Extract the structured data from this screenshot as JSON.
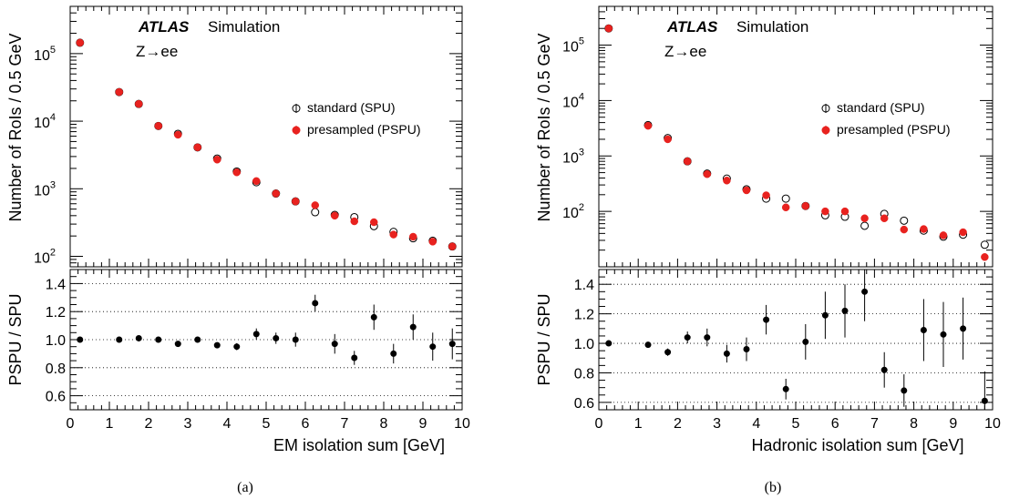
{
  "chart_data": [
    {
      "type": "scatter",
      "caption": "(a)",
      "experiment": "ATLAS",
      "experiment_tag": "Simulation",
      "process": "Z→ee",
      "xlabel": "EM isolation sum [GeV]",
      "ylabel_top": "Number of RoIs / 0.5 GeV",
      "ylabel_bottom": "PSPU / SPU",
      "xlim": [
        0,
        10
      ],
      "ylim_top": [
        70,
        500000
      ],
      "yscale_top": "log",
      "ylim_bottom": [
        0.5,
        1.5
      ],
      "x_ticks": [
        "0",
        "1",
        "2",
        "3",
        "4",
        "5",
        "6",
        "7",
        "8",
        "9",
        "10"
      ],
      "y_ticks_top": [
        {
          "mantissa": "10",
          "exp": "2",
          "value": 100
        },
        {
          "mantissa": "10",
          "exp": "3",
          "value": 1000
        },
        {
          "mantissa": "10",
          "exp": "4",
          "value": 10000
        },
        {
          "mantissa": "10",
          "exp": "5",
          "value": 100000
        }
      ],
      "y_ticks_bottom": [
        "0.6",
        "0.8",
        "1.0",
        "1.2",
        "1.4"
      ],
      "legend": [
        {
          "label": "standard (SPU)",
          "marker": "open-circle",
          "color": "#000000"
        },
        {
          "label": "presampled (PSPU)",
          "marker": "filled-circle",
          "color": "#e8221f"
        }
      ],
      "x": [
        0.25,
        1.25,
        1.75,
        2.25,
        2.75,
        3.25,
        3.75,
        4.25,
        4.75,
        5.25,
        5.75,
        6.25,
        6.75,
        7.25,
        7.75,
        8.25,
        8.75,
        9.25,
        9.75
      ],
      "series": [
        {
          "name": "standard (SPU)",
          "values": [
            145000,
            27000,
            18000,
            8500,
            6500,
            4100,
            2800,
            1800,
            1250,
            850,
            650,
            450,
            410,
            380,
            280,
            230,
            185,
            170,
            140
          ]
        },
        {
          "name": "presampled (PSPU)",
          "values": [
            145000,
            27000,
            18000,
            8500,
            6300,
            4100,
            2700,
            1750,
            1300,
            850,
            650,
            570,
            400,
            330,
            320,
            210,
            195,
            165,
            140
          ]
        }
      ],
      "ratio": {
        "values": [
          1.0,
          1.0,
          1.01,
          1.0,
          0.97,
          1.0,
          0.96,
          0.95,
          1.04,
          1.01,
          1.0,
          1.26,
          0.97,
          0.87,
          1.16,
          0.9,
          1.09,
          0.95,
          0.97
        ],
        "errors": [
          0.005,
          0.01,
          0.012,
          0.015,
          0.015,
          0.02,
          0.02,
          0.025,
          0.04,
          0.04,
          0.05,
          0.06,
          0.07,
          0.05,
          0.09,
          0.07,
          0.09,
          0.1,
          0.11
        ]
      }
    },
    {
      "type": "scatter",
      "caption": "(b)",
      "experiment": "ATLAS",
      "experiment_tag": "Simulation",
      "process": "Z→ee",
      "xlabel": "Hadronic isolation sum [GeV]",
      "ylabel_top": "Number of RoIs  / 0.5 GeV",
      "ylabel_bottom": "PSPU / SPU",
      "xlim": [
        0,
        10
      ],
      "ylim_top": [
        10,
        500000
      ],
      "yscale_top": "log",
      "ylim_bottom": [
        0.55,
        1.5
      ],
      "x_ticks": [
        "0",
        "1",
        "2",
        "3",
        "4",
        "5",
        "6",
        "7",
        "8",
        "9",
        "10"
      ],
      "y_ticks_top": [
        {
          "mantissa": "10",
          "exp": "2",
          "value": 100
        },
        {
          "mantissa": "10",
          "exp": "3",
          "value": 1000
        },
        {
          "mantissa": "10",
          "exp": "4",
          "value": 10000
        },
        {
          "mantissa": "10",
          "exp": "5",
          "value": 100000
        }
      ],
      "y_ticks_bottom": [
        "0.6",
        "0.8",
        "1.0",
        "1.2",
        "1.4"
      ],
      "legend": [
        {
          "label": "standard (SPU)",
          "marker": "open-circle",
          "color": "#000000"
        },
        {
          "label": "presampled (PSPU)",
          "marker": "filled-circle",
          "color": "#e8221f"
        }
      ],
      "x": [
        0.25,
        1.25,
        1.75,
        2.25,
        2.75,
        3.25,
        3.75,
        4.25,
        4.75,
        5.25,
        5.75,
        6.25,
        6.75,
        7.25,
        7.75,
        8.25,
        8.75,
        9.25,
        9.8
      ],
      "series": [
        {
          "name": "standard (SPU)",
          "values": [
            200000,
            3600,
            2100,
            800,
            480,
            390,
            250,
            170,
            170,
            125,
            85,
            80,
            55,
            90,
            68,
            45,
            35,
            38,
            25
          ]
        },
        {
          "name": "presampled (PSPU)",
          "values": [
            200000,
            3500,
            2000,
            800,
            470,
            360,
            240,
            195,
            118,
            125,
            100,
            100,
            75,
            75,
            47,
            48,
            37,
            42,
            15
          ]
        }
      ],
      "ratio": {
        "values": [
          1.0,
          0.99,
          0.94,
          1.04,
          1.04,
          0.93,
          0.96,
          1.16,
          0.69,
          1.01,
          1.19,
          1.22,
          1.35,
          0.82,
          0.68,
          1.09,
          1.06,
          1.1,
          0.61
        ],
        "errors": [
          0.005,
          0.015,
          0.025,
          0.04,
          0.06,
          0.06,
          0.08,
          0.1,
          0.07,
          0.12,
          0.16,
          0.18,
          0.2,
          0.12,
          0.11,
          0.21,
          0.22,
          0.21,
          0.2
        ]
      }
    }
  ]
}
